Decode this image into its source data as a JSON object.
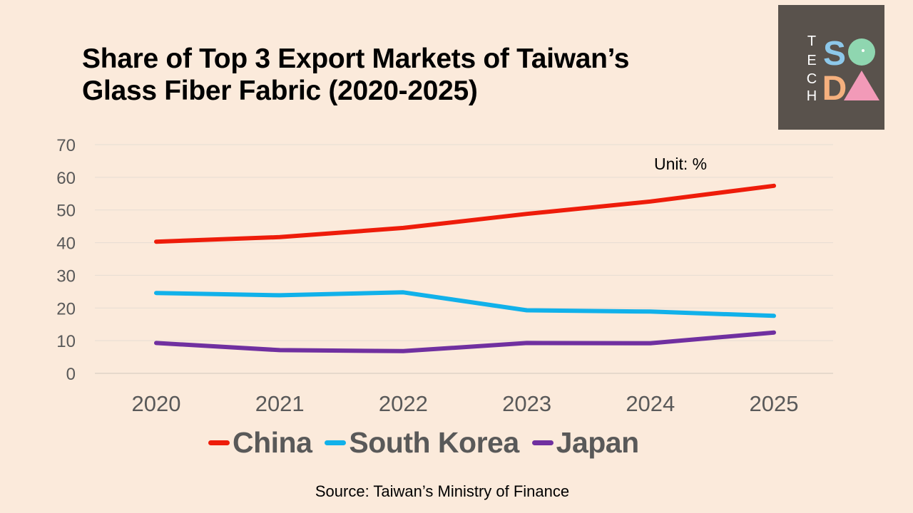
{
  "title_lines": [
    "Share of Top 3 Export Markets of Taiwan’s",
    "Glass Fiber Fabric (2020-2025)"
  ],
  "unit_label": "Unit: %",
  "source": "Source: Taiwan’s Ministry of Finance",
  "logo": {
    "letters_vertical": [
      "T",
      "E",
      "C",
      "H"
    ],
    "letters_grid": [
      "S",
      "O",
      "D",
      "A"
    ],
    "colors": {
      "background": "#59524c",
      "s": "#8dc8ea",
      "o": "#8fd6b0",
      "d": "#f5b07e",
      "a": "#f29ab8",
      "text": "#ffffff"
    }
  },
  "chart_data": {
    "type": "line",
    "title": "Share of Top 3 Export Markets of Taiwan’s Glass Fiber Fabric (2020-2025)",
    "xlabel": "",
    "ylabel": "",
    "x": [
      "2020",
      "2021",
      "2022",
      "2023",
      "2024",
      "2025"
    ],
    "ylim": [
      0,
      70
    ],
    "yticks": [
      "0",
      "10",
      "20",
      "30",
      "40",
      "50",
      "60",
      "70"
    ],
    "grid": true,
    "legend_position": "bottom",
    "series": [
      {
        "name": "China",
        "color": "#ee1c0a",
        "values": [
          40.3,
          41.7,
          44.5,
          48.8,
          52.6,
          57.4
        ]
      },
      {
        "name": "South Korea",
        "color": "#11b1ea",
        "values": [
          24.6,
          23.9,
          24.8,
          19.3,
          18.9,
          17.6
        ]
      },
      {
        "name": "Japan",
        "color": "#7030a0",
        "values": [
          9.3,
          7.1,
          6.8,
          9.3,
          9.2,
          12.5
        ]
      }
    ]
  }
}
